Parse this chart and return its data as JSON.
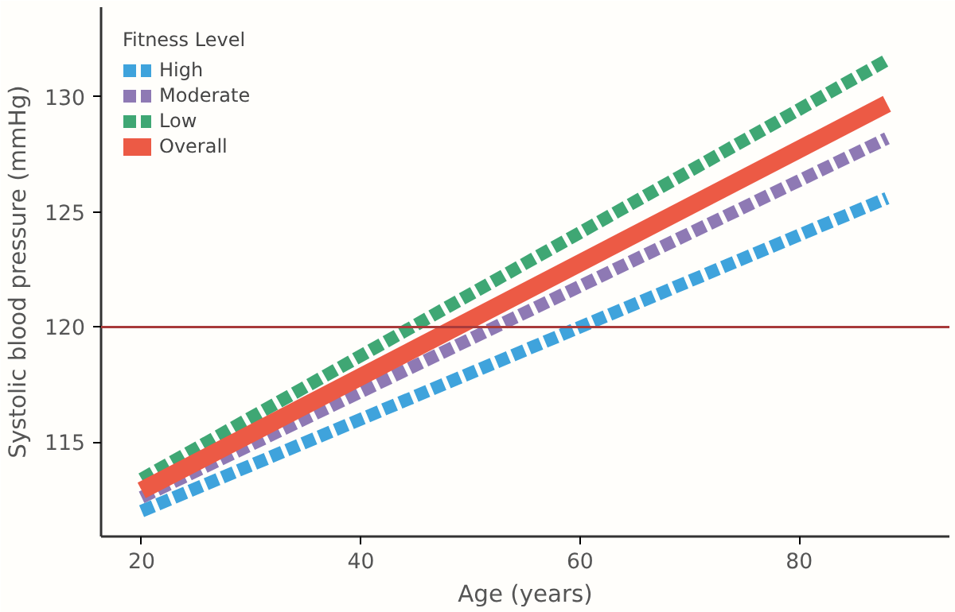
{
  "chart_data": {
    "type": "line",
    "xlabel": "Age (years)",
    "ylabel": "Systolic blood pressure (mmHg)",
    "legend_title": "Fitness Level",
    "xlim": [
      16.3,
      93.7
    ],
    "ylim": [
      110.9,
      133.9
    ],
    "xticks": [
      20,
      40,
      60,
      80
    ],
    "yticks": [
      115,
      120,
      125,
      130
    ],
    "grid": false,
    "legend": "top left",
    "marker": "none",
    "x": [
      20,
      88
    ],
    "ref_lines": [
      {
        "axis": "y",
        "value": 120,
        "label": null,
        "color": "#a83a3a",
        "line_style": "solid"
      }
    ],
    "series": [
      {
        "name": "High",
        "color": "#3fa3dc",
        "values": [
          112.0,
          125.6
        ],
        "line_style": "dashed"
      },
      {
        "name": "Moderate",
        "color": "#8e79b4",
        "values": [
          112.6,
          128.2
        ],
        "line_style": "dashed"
      },
      {
        "name": "Low",
        "color": "#3fa774",
        "values": [
          113.4,
          131.6
        ],
        "line_style": "dashed"
      },
      {
        "name": "Overall",
        "color": "#ec5a45",
        "values": [
          112.9,
          129.7
        ],
        "line_style": "solid"
      }
    ]
  }
}
